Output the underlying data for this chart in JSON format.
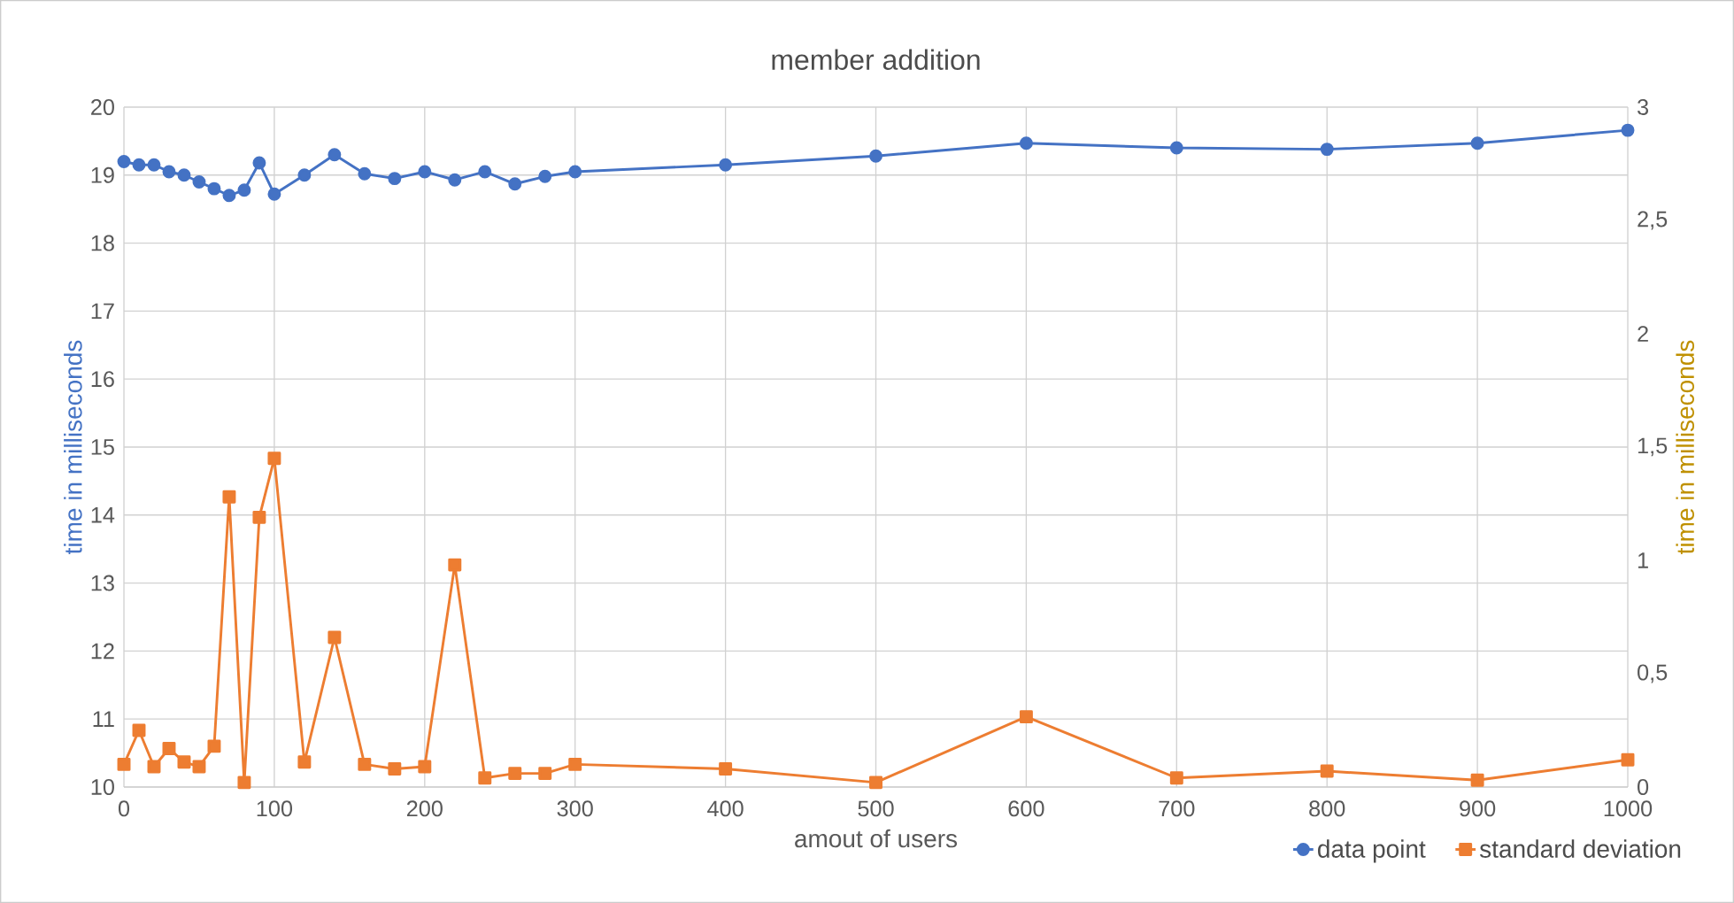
{
  "chart_data": {
    "type": "line",
    "title": "member addition",
    "xlabel": "amout of users",
    "ylabel": "time in milliseconds",
    "y2label": "time in milliseconds",
    "x": [
      0,
      10,
      20,
      30,
      40,
      50,
      60,
      70,
      80,
      90,
      100,
      120,
      140,
      160,
      180,
      200,
      220,
      240,
      260,
      280,
      300,
      400,
      500,
      600,
      700,
      800,
      900,
      1000
    ],
    "series": [
      {
        "name": "data point",
        "color": "#4472c4",
        "marker": "circle",
        "values": [
          19.2,
          19.15,
          19.15,
          19.05,
          19.0,
          18.9,
          18.8,
          18.7,
          18.78,
          19.18,
          18.72,
          19.0,
          19.3,
          19.02,
          18.95,
          19.05,
          18.93,
          19.05,
          18.87,
          18.98,
          19.05,
          19.15,
          19.28,
          19.47,
          19.4,
          19.38,
          19.47,
          19.66
        ]
      },
      {
        "name": "standard deviation",
        "color": "#ed7d31",
        "marker": "square",
        "axis": "y2",
        "values": [
          0.1,
          0.25,
          0.09,
          0.17,
          0.11,
          0.09,
          0.18,
          1.28,
          0.02,
          1.19,
          1.45,
          0.11,
          0.66,
          0.1,
          0.08,
          0.09,
          0.98,
          0.04,
          0.06,
          0.06,
          0.1,
          0.08,
          0.02,
          0.31,
          0.04,
          0.07,
          0.03,
          0.12
        ]
      }
    ],
    "xlim": [
      0,
      1000
    ],
    "xticks": [
      0,
      100,
      200,
      300,
      400,
      500,
      600,
      700,
      800,
      900,
      1000
    ],
    "ylim": [
      10,
      20
    ],
    "yticks": [
      10,
      11,
      12,
      13,
      14,
      15,
      16,
      17,
      18,
      19,
      20
    ],
    "y2lim": [
      0,
      3
    ],
    "y2ticks": [
      0,
      {
        "value": 0.5,
        "label": "0,5"
      },
      1,
      {
        "value": 1.5,
        "label": "1,5"
      },
      2,
      {
        "value": 2.5,
        "label": "2,5"
      },
      3
    ],
    "grid": true,
    "legend": "bottom right",
    "line_style": "solid"
  }
}
